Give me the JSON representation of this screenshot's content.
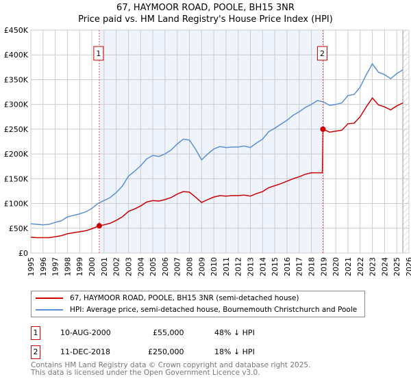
{
  "title": "67, HAYMOOR ROAD, POOLE, BH15 3NR",
  "subtitle": "Price paid vs. HM Land Registry's House Price Index (HPI)",
  "legend": {
    "property": "67, HAYMOOR ROAD, POOLE, BH15 3NR (semi-detached house)",
    "hpi": "HPI: Average price, semi-detached house, Bournemouth Christchurch and Poole"
  },
  "sales": [
    {
      "num": "1",
      "date": "10-AUG-2000",
      "price": "£55,000",
      "diff": "48% ↓ HPI"
    },
    {
      "num": "2",
      "date": "11-DEC-2018",
      "price": "£250,000",
      "diff": "18% ↓ HPI"
    }
  ],
  "footer": {
    "line1": "Contains HM Land Registry data © Crown copyright and database right 2025.",
    "line2": "This data is licensed under the Open Government Licence v3.0."
  },
  "colors": {
    "property": "#cc0000",
    "hpi": "#5b8fd4",
    "shade": "#eef3fc"
  },
  "chart_data": {
    "type": "line",
    "title": "67, HAYMOOR ROAD, POOLE, BH15 3NR",
    "xlim": [
      1995,
      2026
    ],
    "ylim": [
      0,
      450000
    ],
    "yticks": [
      0,
      50000,
      100000,
      150000,
      200000,
      250000,
      300000,
      350000,
      400000,
      450000
    ],
    "ytick_labels": [
      "£0",
      "£50K",
      "£100K",
      "£150K",
      "£200K",
      "£250K",
      "£300K",
      "£350K",
      "£400K",
      "£450K"
    ],
    "xticks": [
      "1995",
      "1996",
      "1997",
      "1998",
      "1999",
      "2000",
      "2001",
      "2002",
      "2003",
      "2004",
      "2005",
      "2006",
      "2007",
      "2008",
      "2009",
      "2010",
      "2011",
      "2012",
      "2013",
      "2014",
      "2015",
      "2016",
      "2017",
      "2018",
      "2019",
      "2020",
      "2021",
      "2022",
      "2023",
      "2024",
      "2025",
      "2026"
    ],
    "grid": true,
    "shaded_range": [
      2000.61,
      2018.95
    ],
    "hatched_from": 2025.5,
    "markers": [
      {
        "label": "1",
        "x": 2000.61,
        "y": 55000
      },
      {
        "label": "2",
        "x": 2018.95,
        "y": 250000
      }
    ],
    "series": [
      {
        "name": "hpi",
        "x_start": 1995,
        "x_step": 0.5,
        "values": [
          59000,
          58000,
          57000,
          58000,
          62000,
          65000,
          73000,
          76000,
          79000,
          83000,
          90000,
          100000,
          106000,
          112000,
          122000,
          135000,
          155000,
          165000,
          176000,
          190000,
          197000,
          195000,
          200000,
          208000,
          220000,
          230000,
          228000,
          210000,
          188000,
          200000,
          210000,
          215000,
          213000,
          214000,
          214000,
          216000,
          213000,
          222000,
          230000,
          245000,
          252000,
          260000,
          268000,
          278000,
          285000,
          294000,
          300000,
          308000,
          305000,
          298000,
          300000,
          303000,
          318000,
          320000,
          335000,
          360000,
          382000,
          365000,
          360000,
          352000,
          362000,
          370000
        ]
      },
      {
        "name": "property",
        "x_start": 1995,
        "x_step": 0.5,
        "values": [
          32000,
          31000,
          31000,
          31000,
          33000,
          35000,
          39000,
          41000,
          43000,
          45000,
          49000,
          54000,
          57000,
          60000,
          66000,
          73000,
          84000,
          89000,
          95000,
          103000,
          106000,
          105000,
          108000,
          112000,
          119000,
          124000,
          123000,
          113000,
          102000,
          108000,
          113000,
          116000,
          115000,
          116000,
          116000,
          117000,
          115000,
          120000,
          124000,
          132000,
          136000,
          140000,
          145000,
          150000,
          154000,
          159000,
          162000,
          162000,
          250000,
          244000,
          246000,
          248000,
          261000,
          262000,
          275000,
          295000,
          313000,
          299000,
          295000,
          289000,
          297000,
          303000
        ]
      }
    ]
  }
}
